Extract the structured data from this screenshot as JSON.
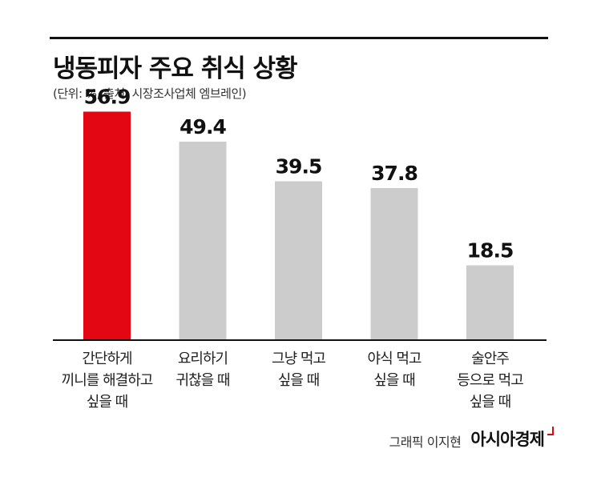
{
  "title": "냉동피자 주요 취식 상황",
  "subtitle": "(단위: %, 출처: 시장조사업체 엠브레인)",
  "credit": {
    "author": "그래픽 이지현",
    "brand": "아시아경제"
  },
  "colors": {
    "highlight": "#e30613",
    "bar": "#cccccc",
    "baseline": "#111111"
  },
  "chart_data": {
    "type": "bar",
    "title": "냉동피자 주요 취식 상황",
    "unit": "%",
    "categories": [
      [
        "간단하게",
        "끼니를 해결하고",
        "싶을 때"
      ],
      [
        "요리하기",
        "귀찮을 때"
      ],
      [
        "그냥 먹고",
        "싶을 때"
      ],
      [
        "야식 먹고",
        "싶을 때"
      ],
      [
        "술안주",
        "등으로 먹고",
        "싶을 때"
      ]
    ],
    "values": [
      56.9,
      49.4,
      39.5,
      37.8,
      18.5
    ],
    "value_labels": [
      "56.9",
      "49.4",
      "39.5",
      "37.8",
      "18.5"
    ],
    "highlight_index": 0,
    "ylim": [
      0,
      60
    ],
    "grid": false,
    "legend": "none"
  }
}
